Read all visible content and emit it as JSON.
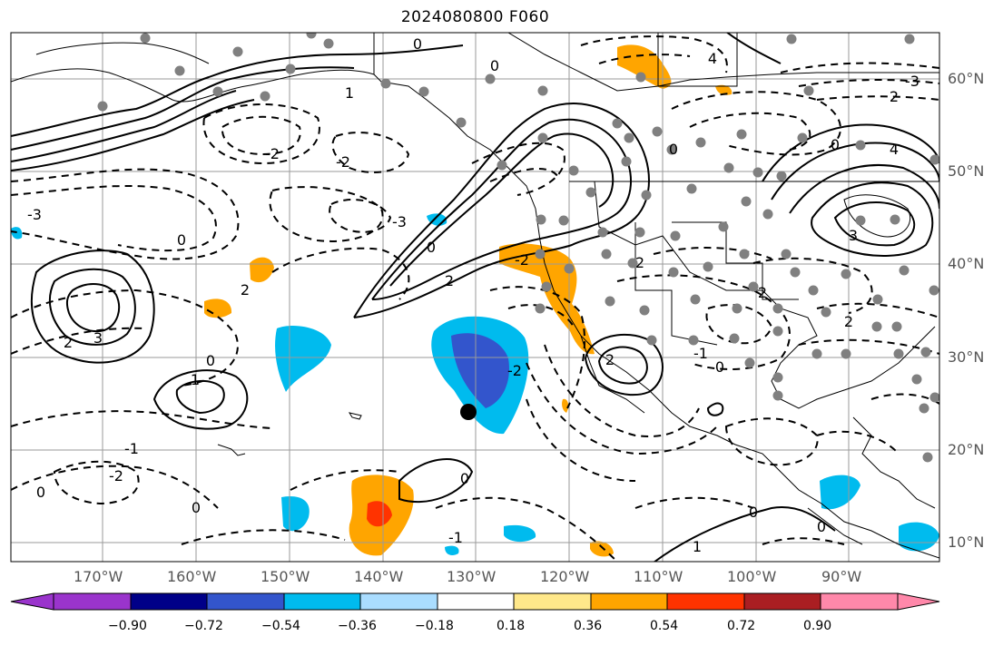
{
  "title": "2024080800 F060",
  "lon_labels": [
    "170°W",
    "160°W",
    "150°W",
    "140°W",
    "130°W",
    "120°W",
    "110°W",
    "100°W",
    "90°W"
  ],
  "lat_labels": [
    "60°N",
    "50°N",
    "40°N",
    "30°N",
    "20°N",
    "10°N"
  ],
  "colorbar": {
    "ticks": [
      "−0.90",
      "−0.72",
      "−0.54",
      "−0.36",
      "−0.18",
      "0.18",
      "0.36",
      "0.54",
      "0.72",
      "0.90"
    ],
    "colors": [
      "#9a34cc",
      "#000088",
      "#3355cc",
      "#00bbee",
      "#aaddff",
      "#ffffff",
      "#ffe88a",
      "#ffa500",
      "#ff3300",
      "#aa1e22",
      "#ff88aa"
    ]
  },
  "contour_labels": [
    "2",
    "0",
    "-2",
    "-3",
    "3",
    "1",
    "-1",
    "4"
  ],
  "colors": {
    "grid": "#9a9a9a",
    "coast": "#000000",
    "station": "#808080",
    "marker": "#000000"
  }
}
